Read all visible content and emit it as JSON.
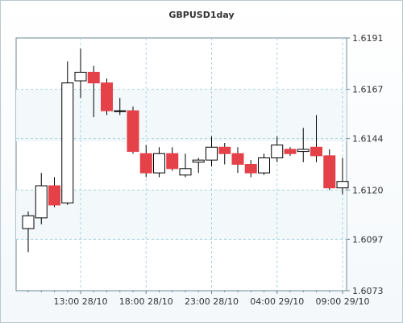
{
  "chart_data": {
    "type": "candlestick",
    "title": "GBPUSD1day",
    "xlabel": "",
    "ylabel": "",
    "ylim": [
      1.6073,
      1.6191
    ],
    "y_ticks": [
      "1.6191",
      "1.6167",
      "1.6144",
      "1.6120",
      "1.6097",
      "1.6073"
    ],
    "x_ticks": [
      {
        "label": "13:00 28/10",
        "index": 4
      },
      {
        "label": "18:00 28/10",
        "index": 9
      },
      {
        "label": "23:00 28/10",
        "index": 14
      },
      {
        "label": "04:00 29/10",
        "index": 19
      },
      {
        "label": "09:00 29/10",
        "index": 24
      }
    ],
    "grid": true,
    "legend": "none",
    "colors": {
      "up": "#ffffff",
      "down": "#e54148",
      "wick": "#000000",
      "grid": "#a7d4e0",
      "axis": "#6b8797"
    },
    "candles": [
      {
        "open": 1.6102,
        "high": 1.611,
        "low": 1.6091,
        "close": 1.6108
      },
      {
        "open": 1.6107,
        "high": 1.6128,
        "low": 1.6104,
        "close": 1.6122
      },
      {
        "open": 1.6122,
        "high": 1.6126,
        "low": 1.6112,
        "close": 1.6113
      },
      {
        "open": 1.6114,
        "high": 1.618,
        "low": 1.6113,
        "close": 1.617
      },
      {
        "open": 1.6171,
        "high": 1.6186,
        "low": 1.6163,
        "close": 1.6175
      },
      {
        "open": 1.6175,
        "high": 1.6178,
        "low": 1.6154,
        "close": 1.617
      },
      {
        "open": 1.617,
        "high": 1.6172,
        "low": 1.6155,
        "close": 1.6157
      },
      {
        "open": 1.6157,
        "high": 1.6163,
        "low": 1.6155,
        "close": 1.6157
      },
      {
        "open": 1.6157,
        "high": 1.6159,
        "low": 1.6137,
        "close": 1.6138
      },
      {
        "open": 1.6137,
        "high": 1.6141,
        "low": 1.6126,
        "close": 1.6128
      },
      {
        "open": 1.6128,
        "high": 1.614,
        "low": 1.6126,
        "close": 1.6137
      },
      {
        "open": 1.6137,
        "high": 1.614,
        "low": 1.6129,
        "close": 1.613
      },
      {
        "open": 1.6127,
        "high": 1.6137,
        "low": 1.6126,
        "close": 1.613
      },
      {
        "open": 1.6133,
        "high": 1.6135,
        "low": 1.6128,
        "close": 1.6134
      },
      {
        "open": 1.6134,
        "high": 1.6145,
        "low": 1.6131,
        "close": 1.614
      },
      {
        "open": 1.614,
        "high": 1.6142,
        "low": 1.6132,
        "close": 1.6137
      },
      {
        "open": 1.6137,
        "high": 1.614,
        "low": 1.6128,
        "close": 1.6132
      },
      {
        "open": 1.6132,
        "high": 1.6134,
        "low": 1.6126,
        "close": 1.6128
      },
      {
        "open": 1.6128,
        "high": 1.6137,
        "low": 1.6127,
        "close": 1.6135
      },
      {
        "open": 1.6135,
        "high": 1.6145,
        "low": 1.6133,
        "close": 1.6141
      },
      {
        "open": 1.6139,
        "high": 1.614,
        "low": 1.6136,
        "close": 1.6137
      },
      {
        "open": 1.6138,
        "high": 1.6149,
        "low": 1.6133,
        "close": 1.6139
      },
      {
        "open": 1.614,
        "high": 1.6155,
        "low": 1.6133,
        "close": 1.6136
      },
      {
        "open": 1.6136,
        "high": 1.6139,
        "low": 1.612,
        "close": 1.6121
      },
      {
        "open": 1.6121,
        "high": 1.6135,
        "low": 1.6118,
        "close": 1.6124
      }
    ]
  }
}
